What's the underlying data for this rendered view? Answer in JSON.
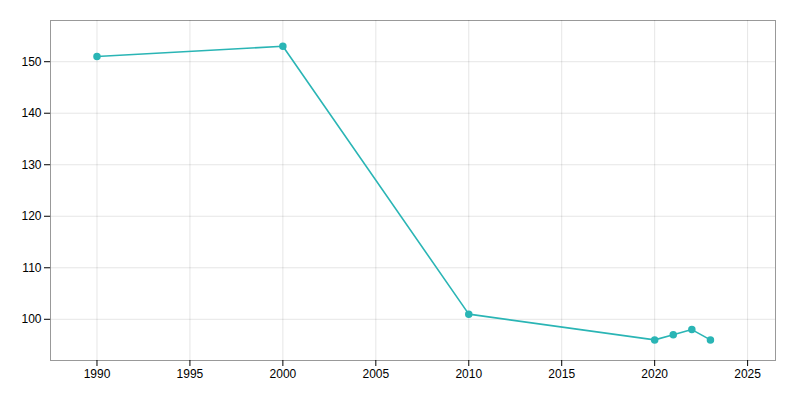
{
  "chart_data": {
    "type": "line",
    "x": [
      1990,
      2000,
      2010,
      2020,
      2021,
      2022,
      2023
    ],
    "values": [
      151,
      153,
      101,
      96,
      97,
      98,
      96
    ],
    "color": "#2ab5b5",
    "marker": "circle",
    "xlim": [
      1987.5,
      2026.5
    ],
    "ylim": [
      92,
      158
    ],
    "xticks": [
      1990,
      1995,
      2000,
      2005,
      2010,
      2015,
      2020,
      2025
    ],
    "yticks": [
      100,
      110,
      120,
      130,
      140,
      150
    ],
    "grid": true
  }
}
